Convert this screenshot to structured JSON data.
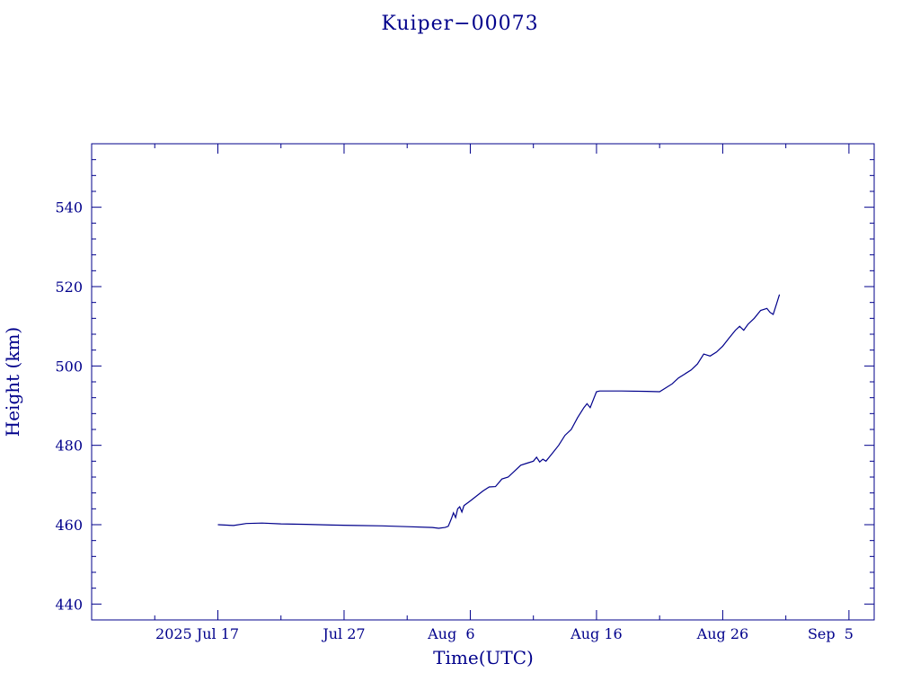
{
  "chart_data": {
    "type": "line",
    "title": "Kuiper−00073",
    "xlabel": "Time(UTC)",
    "ylabel": "Height (km)",
    "x_range": [
      "2025-07-07",
      "2025-09-07"
    ],
    "ylim": [
      436,
      556
    ],
    "x_ticks": [
      {
        "date": "2025-07-17",
        "label": "2025 Jul 17"
      },
      {
        "date": "2025-07-27",
        "label": "Jul 27"
      },
      {
        "date": "2025-08-06",
        "label": "Aug  6"
      },
      {
        "date": "2025-08-16",
        "label": "Aug 16"
      },
      {
        "date": "2025-08-26",
        "label": "Aug 26"
      },
      {
        "date": "2025-09-05",
        "label": "Sep  5"
      }
    ],
    "y_ticks": [
      440,
      460,
      480,
      500,
      520,
      540
    ],
    "line_color": "#00008b",
    "series": [
      {
        "points": [
          [
            "2025-07-17T00:00",
            460.0
          ],
          [
            "2025-07-18T06:00",
            459.8
          ],
          [
            "2025-07-19T06:00",
            460.3
          ],
          [
            "2025-07-20T12:00",
            460.4
          ],
          [
            "2025-07-22T00:00",
            460.2
          ],
          [
            "2025-07-24T00:00",
            460.1
          ],
          [
            "2025-07-26T00:00",
            459.9
          ],
          [
            "2025-07-28T00:00",
            459.8
          ],
          [
            "2025-07-30T00:00",
            459.7
          ],
          [
            "2025-08-01T00:00",
            459.5
          ],
          [
            "2025-08-03T00:00",
            459.3
          ],
          [
            "2025-08-03T12:00",
            459.1
          ],
          [
            "2025-08-04T00:00",
            459.3
          ],
          [
            "2025-08-04T06:00",
            459.6
          ],
          [
            "2025-08-04T12:00",
            461.5
          ],
          [
            "2025-08-04T16:00",
            463.0
          ],
          [
            "2025-08-04T20:00",
            461.8
          ],
          [
            "2025-08-05T00:00",
            464.0
          ],
          [
            "2025-08-05T04:00",
            464.5
          ],
          [
            "2025-08-05T08:00",
            463.2
          ],
          [
            "2025-08-05T12:00",
            464.8
          ],
          [
            "2025-08-06T00:00",
            466.0
          ],
          [
            "2025-08-07T00:00",
            468.5
          ],
          [
            "2025-08-07T12:00",
            469.5
          ],
          [
            "2025-08-08T00:00",
            469.6
          ],
          [
            "2025-08-08T12:00",
            471.5
          ],
          [
            "2025-08-09T00:00",
            472.0
          ],
          [
            "2025-08-09T12:00",
            473.5
          ],
          [
            "2025-08-10T00:00",
            475.0
          ],
          [
            "2025-08-10T12:00",
            475.5
          ],
          [
            "2025-08-11T00:00",
            476.0
          ],
          [
            "2025-08-11T06:00",
            477.0
          ],
          [
            "2025-08-11T12:00",
            475.8
          ],
          [
            "2025-08-11T18:00",
            476.5
          ],
          [
            "2025-08-12T00:00",
            476.0
          ],
          [
            "2025-08-12T12:00",
            478.0
          ],
          [
            "2025-08-13T00:00",
            480.0
          ],
          [
            "2025-08-13T12:00",
            482.5
          ],
          [
            "2025-08-14T00:00",
            484.0
          ],
          [
            "2025-08-14T12:00",
            487.0
          ],
          [
            "2025-08-15T00:00",
            489.5
          ],
          [
            "2025-08-15T06:00",
            490.5
          ],
          [
            "2025-08-15T12:00",
            489.5
          ],
          [
            "2025-08-16T00:00",
            493.5
          ],
          [
            "2025-08-16T06:00",
            493.7
          ],
          [
            "2025-08-18T00:00",
            493.7
          ],
          [
            "2025-08-20T00:00",
            493.6
          ],
          [
            "2025-08-21T00:00",
            493.5
          ],
          [
            "2025-08-21T12:00",
            494.5
          ],
          [
            "2025-08-22T00:00",
            495.5
          ],
          [
            "2025-08-22T12:00",
            497.0
          ],
          [
            "2025-08-23T00:00",
            498.0
          ],
          [
            "2025-08-23T12:00",
            499.0
          ],
          [
            "2025-08-24T00:00",
            500.5
          ],
          [
            "2025-08-24T12:00",
            503.0
          ],
          [
            "2025-08-25T00:00",
            502.5
          ],
          [
            "2025-08-25T12:00",
            503.5
          ],
          [
            "2025-08-26T00:00",
            505.0
          ],
          [
            "2025-08-26T12:00",
            507.0
          ],
          [
            "2025-08-27T00:00",
            509.0
          ],
          [
            "2025-08-27T08:00",
            510.0
          ],
          [
            "2025-08-27T16:00",
            509.0
          ],
          [
            "2025-08-28T00:00",
            510.5
          ],
          [
            "2025-08-28T12:00",
            512.0
          ],
          [
            "2025-08-29T00:00",
            514.0
          ],
          [
            "2025-08-29T12:00",
            514.5
          ],
          [
            "2025-08-29T18:00",
            513.5
          ],
          [
            "2025-08-30T00:00",
            513.0
          ],
          [
            "2025-08-30T06:00",
            515.5
          ],
          [
            "2025-08-30T12:00",
            518.0
          ]
        ]
      }
    ]
  }
}
